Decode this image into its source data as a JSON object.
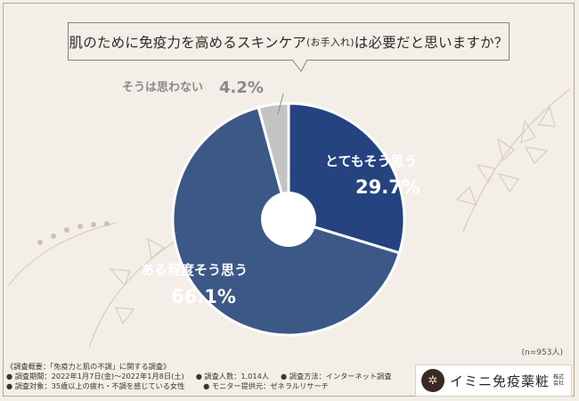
{
  "chart_data": {
    "type": "pie",
    "title_main": "肌のために免疫力を高めるスキンケア",
    "title_paren": "(お手入れ)",
    "title_tail": "は必要だと思いますか？",
    "categories": [
      "とてもそう思う",
      "ある程度そう思う",
      "そうは思わない"
    ],
    "values": [
      29.7,
      66.1,
      4.2
    ],
    "value_labels": [
      "29.7%",
      "66.1%",
      "4.2%"
    ],
    "colors": [
      "#24437f",
      "#3c5887",
      "#c3c3c3"
    ],
    "note": "(n=953人)"
  },
  "footer": {
    "line1": "《調査概要：「免疫力と肌の不調」に関する調査》",
    "line2a": "● 調査期間：2022年1月7日(金)〜2022年1月8日(土)",
    "line2b": "● 調査人数：1,014人",
    "line2c": "● 調査方法：インターネット調査",
    "line3a": "● 調査対象：35歳以上の疲れ・不調を感じている女性",
    "line3b": "● モニター提供元：ゼネラルリサーチ"
  },
  "logo": {
    "name": "イミニ免疫薬粧",
    "suffix": "株式会社"
  }
}
